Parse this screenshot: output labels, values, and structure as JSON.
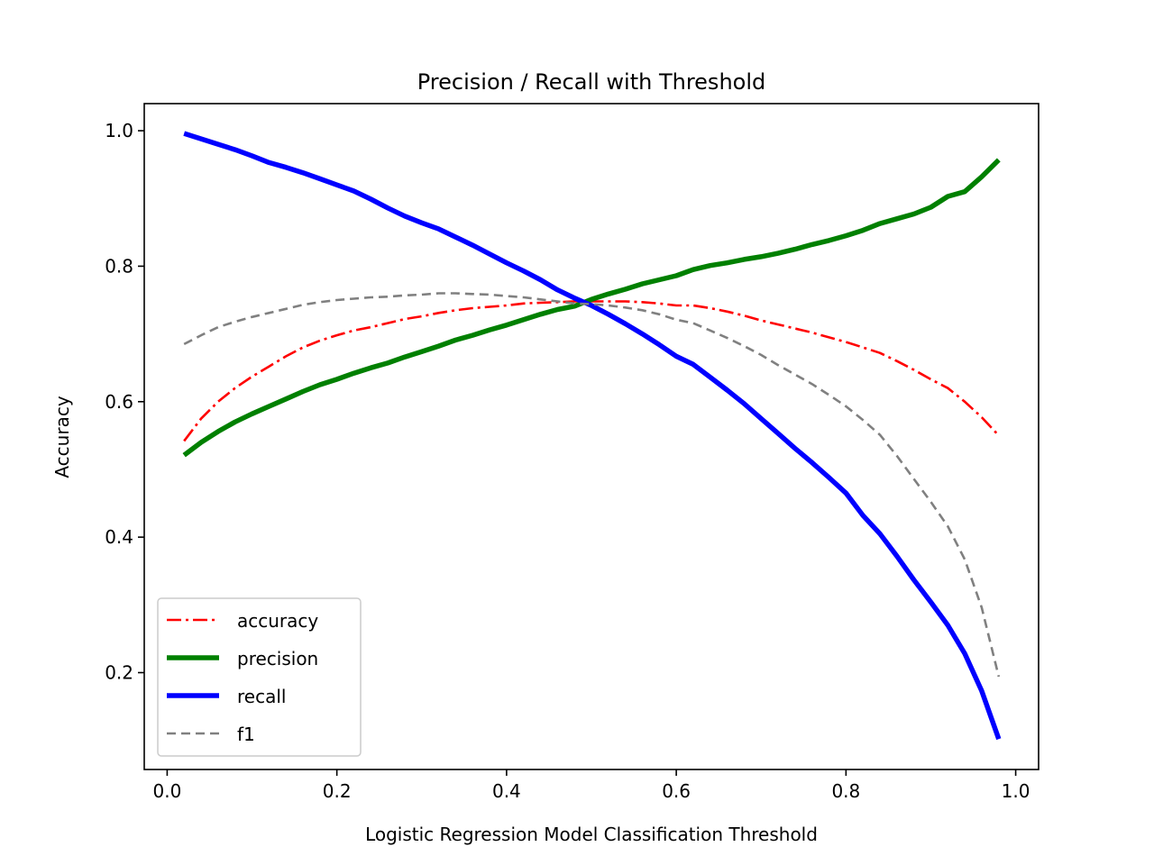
{
  "chart_data": {
    "type": "line",
    "title": "Precision / Recall with Threshold",
    "xlabel": "Logistic Regression Model Classification Threshold",
    "ylabel": "Accuracy",
    "xlim": [
      -0.027,
      1.027
    ],
    "ylim": [
      0.057,
      1.04
    ],
    "xticks": [
      0.0,
      0.2,
      0.4,
      0.6,
      0.8,
      1.0
    ],
    "xtick_labels": [
      "0.0",
      "0.2",
      "0.4",
      "0.6",
      "0.8",
      "1.0"
    ],
    "yticks": [
      0.2,
      0.4,
      0.6,
      0.8,
      1.0
    ],
    "ytick_labels": [
      "0.2",
      "0.4",
      "0.6",
      "0.8",
      "1.0"
    ],
    "grid": false,
    "legend_position": "lower-left",
    "x": [
      0.02,
      0.04,
      0.06,
      0.08,
      0.1,
      0.12,
      0.14,
      0.16,
      0.18,
      0.2,
      0.22,
      0.24,
      0.26,
      0.28,
      0.3,
      0.32,
      0.34,
      0.36,
      0.38,
      0.4,
      0.42,
      0.44,
      0.46,
      0.48,
      0.5,
      0.52,
      0.54,
      0.56,
      0.58,
      0.6,
      0.62,
      0.64,
      0.66,
      0.68,
      0.7,
      0.72,
      0.74,
      0.76,
      0.78,
      0.8,
      0.82,
      0.84,
      0.86,
      0.88,
      0.9,
      0.92,
      0.94,
      0.96,
      0.98
    ],
    "series": [
      {
        "name": "accuracy",
        "color": "#ff0000",
        "style": "dashdot",
        "values": [
          0.542,
          0.575,
          0.6,
          0.62,
          0.637,
          0.652,
          0.667,
          0.68,
          0.69,
          0.698,
          0.705,
          0.71,
          0.716,
          0.722,
          0.726,
          0.731,
          0.735,
          0.738,
          0.74,
          0.742,
          0.745,
          0.746,
          0.747,
          0.748,
          0.748,
          0.748,
          0.748,
          0.747,
          0.745,
          0.742,
          0.742,
          0.738,
          0.733,
          0.727,
          0.72,
          0.714,
          0.708,
          0.702,
          0.695,
          0.688,
          0.68,
          0.672,
          0.66,
          0.647,
          0.633,
          0.62,
          0.6,
          0.577,
          0.55
        ]
      },
      {
        "name": "precision",
        "color": "#008000",
        "style": "solid",
        "values": [
          0.521,
          0.54,
          0.556,
          0.57,
          0.582,
          0.593,
          0.604,
          0.615,
          0.625,
          0.633,
          0.642,
          0.65,
          0.657,
          0.666,
          0.674,
          0.682,
          0.691,
          0.698,
          0.706,
          0.713,
          0.721,
          0.729,
          0.736,
          0.741,
          0.751,
          0.759,
          0.766,
          0.774,
          0.78,
          0.786,
          0.795,
          0.801,
          0.805,
          0.81,
          0.814,
          0.819,
          0.825,
          0.832,
          0.838,
          0.845,
          0.853,
          0.863,
          0.87,
          0.877,
          0.887,
          0.903,
          0.91,
          0.932,
          0.957
        ]
      },
      {
        "name": "recall",
        "color": "#0000ff",
        "style": "solid",
        "values": [
          0.996,
          0.988,
          0.98,
          0.972,
          0.963,
          0.953,
          0.946,
          0.938,
          0.929,
          0.92,
          0.911,
          0.899,
          0.886,
          0.874,
          0.864,
          0.855,
          0.843,
          0.831,
          0.818,
          0.805,
          0.793,
          0.78,
          0.765,
          0.753,
          0.742,
          0.729,
          0.715,
          0.7,
          0.684,
          0.667,
          0.655,
          0.636,
          0.617,
          0.597,
          0.575,
          0.553,
          0.531,
          0.51,
          0.488,
          0.465,
          0.432,
          0.405,
          0.372,
          0.337,
          0.304,
          0.27,
          0.228,
          0.173,
          0.102
        ]
      },
      {
        "name": "f1",
        "color": "#808080",
        "style": "dashed",
        "values": [
          0.685,
          0.698,
          0.71,
          0.718,
          0.725,
          0.731,
          0.737,
          0.743,
          0.747,
          0.75,
          0.752,
          0.754,
          0.755,
          0.757,
          0.758,
          0.76,
          0.76,
          0.759,
          0.758,
          0.756,
          0.754,
          0.751,
          0.748,
          0.745,
          0.744,
          0.742,
          0.739,
          0.735,
          0.729,
          0.721,
          0.716,
          0.705,
          0.694,
          0.682,
          0.669,
          0.654,
          0.64,
          0.626,
          0.61,
          0.593,
          0.573,
          0.551,
          0.52,
          0.486,
          0.452,
          0.416,
          0.367,
          0.296,
          0.194
        ]
      }
    ]
  }
}
